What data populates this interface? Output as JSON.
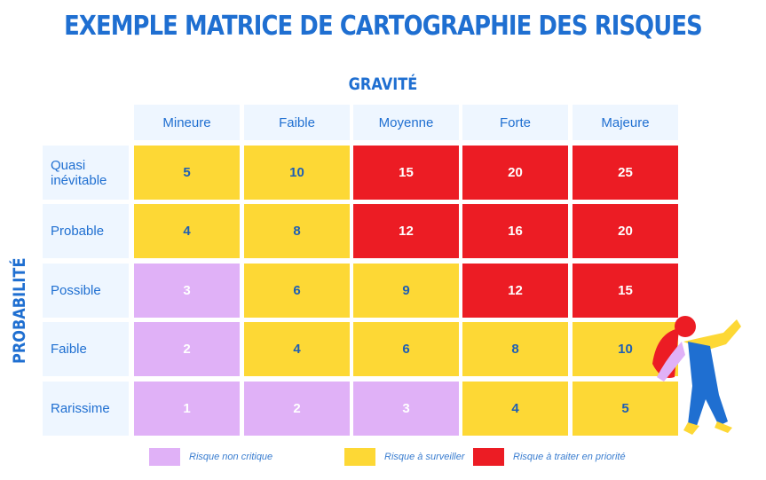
{
  "title": "EXEMPLE MATRICE DE CARTOGRAPHIE DES RISQUES",
  "chart_data": {
    "type": "heatmap",
    "xlabel": "GRAVITÉ",
    "ylabel": "PROBABILITÉ",
    "columns": [
      "Mineure",
      "Faible",
      "Moyenne",
      "Forte",
      "Majeure"
    ],
    "rows": [
      "Quasi inévitable",
      "Probable",
      "Possible",
      "Faible",
      "Rarissime"
    ],
    "values": [
      [
        5,
        10,
        15,
        20,
        25
      ],
      [
        4,
        8,
        12,
        16,
        20
      ],
      [
        3,
        6,
        9,
        12,
        15
      ],
      [
        2,
        4,
        6,
        8,
        10
      ],
      [
        1,
        2,
        3,
        4,
        5
      ]
    ],
    "categories": [
      [
        "Y",
        "Y",
        "R",
        "R",
        "R"
      ],
      [
        "Y",
        "Y",
        "R",
        "R",
        "R"
      ],
      [
        "P",
        "Y",
        "Y",
        "R",
        "R"
      ],
      [
        "P",
        "Y",
        "Y",
        "Y",
        "Y"
      ],
      [
        "P",
        "P",
        "P",
        "Y",
        "Y"
      ]
    ],
    "legend": [
      {
        "key": "P",
        "label": "Risque non critique",
        "color": "#e0b1f7",
        "text_color": "#ffffff"
      },
      {
        "key": "Y",
        "label": "Risque à surveiller",
        "color": "#fdd835",
        "text_color": "#1f5fb4"
      },
      {
        "key": "R",
        "label": "Risque à traiter en priorité",
        "color": "#ec1c24",
        "text_color": "#ffffff"
      }
    ]
  }
}
